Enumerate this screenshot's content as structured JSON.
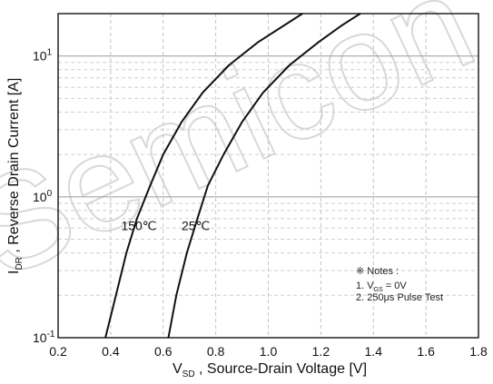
{
  "chart_data": {
    "type": "line",
    "xlabel": {
      "prefix": "V",
      "sub": "SD",
      "rest": " , Source-Drain Voltage  [V]"
    },
    "ylabel": {
      "prefix": "I",
      "sub": "DR",
      "rest": " , Reverse Drain Current  [A]"
    },
    "xlim": [
      0.2,
      1.8
    ],
    "ylim": [
      0.1,
      20
    ],
    "yscale": "log",
    "grid": true,
    "x_ticks": [
      "0.2",
      "0.4",
      "0.6",
      "0.8",
      "1.0",
      "1.2",
      "1.4",
      "1.6",
      "1.8"
    ],
    "y_ticks": [
      {
        "base": "10",
        "exp": "-1",
        "value": 0.1
      },
      {
        "base": "10",
        "exp": "0",
        "value": 1
      },
      {
        "base": "10",
        "exp": "1",
        "value": 10
      }
    ],
    "series": [
      {
        "name": "150℃",
        "points": [
          [
            0.38,
            0.1
          ],
          [
            0.42,
            0.2
          ],
          [
            0.46,
            0.4
          ],
          [
            0.5,
            0.7
          ],
          [
            0.55,
            1.2
          ],
          [
            0.6,
            2.0
          ],
          [
            0.67,
            3.4
          ],
          [
            0.75,
            5.5
          ],
          [
            0.85,
            8.6
          ],
          [
            0.96,
            12.5
          ],
          [
            1.06,
            16.5
          ],
          [
            1.13,
            20
          ]
        ]
      },
      {
        "name": "25℃",
        "points": [
          [
            0.62,
            0.1
          ],
          [
            0.65,
            0.2
          ],
          [
            0.69,
            0.4
          ],
          [
            0.73,
            0.7
          ],
          [
            0.77,
            1.2
          ],
          [
            0.83,
            2.0
          ],
          [
            0.9,
            3.4
          ],
          [
            0.98,
            5.5
          ],
          [
            1.08,
            8.6
          ],
          [
            1.19,
            12.5
          ],
          [
            1.28,
            16.5
          ],
          [
            1.35,
            20
          ]
        ]
      }
    ],
    "curve_labels": [
      {
        "text": "150℃",
        "x": 0.44,
        "y": 0.58
      },
      {
        "text": "25℃",
        "x": 0.67,
        "y": 0.58
      }
    ],
    "notes": {
      "title": "※ Notes :",
      "line1_prefix": "1. V",
      "line1_sub": "GS",
      "line1_rest": " = 0V",
      "line2": "2. 250μs Pulse Test"
    }
  },
  "watermark": "Semicon"
}
